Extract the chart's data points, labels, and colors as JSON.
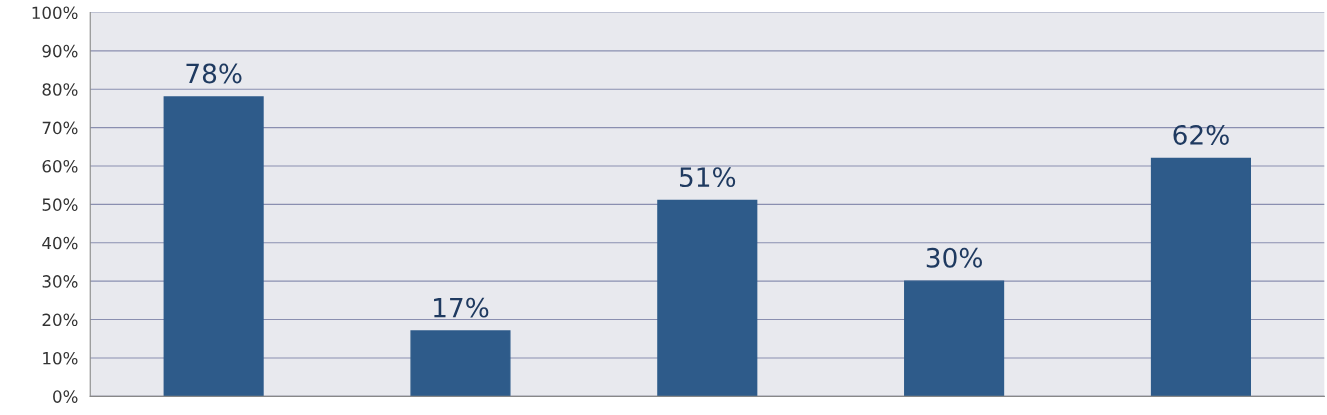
{
  "chart_data": {
    "type": "bar",
    "categories": [
      null,
      null,
      null,
      null,
      null
    ],
    "values": [
      78,
      17,
      51,
      30,
      62
    ],
    "value_labels": [
      "78%",
      "17%",
      "51%",
      "30%",
      "62%"
    ],
    "color": "#2e5b8a",
    "ylim": [
      0,
      100
    ],
    "yticks": [
      {
        "value": 0,
        "label": "0%"
      },
      {
        "value": 10,
        "label": "10%"
      },
      {
        "value": 20,
        "label": "20%"
      },
      {
        "value": 30,
        "label": "30%"
      },
      {
        "value": 40,
        "label": "40%"
      },
      {
        "value": 50,
        "label": "50%"
      },
      {
        "value": 60,
        "label": "60%"
      },
      {
        "value": 70,
        "label": "70%"
      },
      {
        "value": 80,
        "label": "80%"
      },
      {
        "value": 90,
        "label": "90%"
      },
      {
        "value": 100,
        "label": "100%"
      }
    ],
    "grid": "y",
    "legend": false
  }
}
